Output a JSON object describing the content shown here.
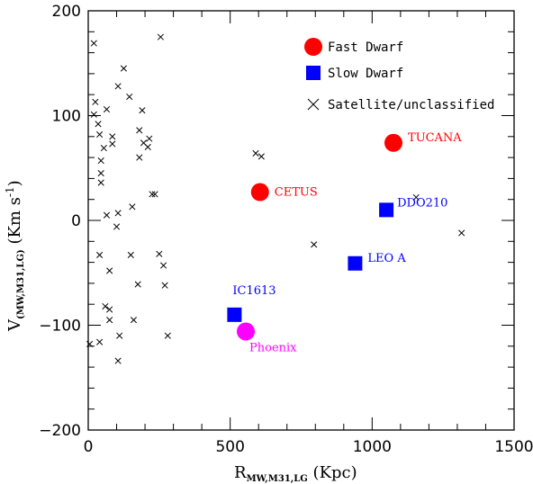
{
  "chart_data": {
    "type": "scatter",
    "title": "",
    "xlabel": {
      "main": "R",
      "sub": "MW,M31,LG",
      "unit": " (Kpc)"
    },
    "ylabel": {
      "main": "V",
      "sub": "(MW,M31,LG)",
      "unit": "  (Km s",
      "sup": "-1",
      "close": ")"
    },
    "xlim": [
      0,
      1500
    ],
    "ylim": [
      -200,
      200
    ],
    "x_ticks": [
      0,
      500,
      1000,
      1500
    ],
    "y_ticks": [
      -200,
      -100,
      0,
      100,
      200
    ],
    "legend_position": "top-right",
    "legend": [
      {
        "label": "Fast Dwarf",
        "marker": "circle",
        "color": "#ff0000"
      },
      {
        "label": "Slow Dwarf",
        "marker": "square",
        "color": "#0000ff"
      },
      {
        "label": "Satellite/unclassified",
        "marker": "cross",
        "color": "#000000"
      }
    ],
    "named_points": [
      {
        "name": "CETUS",
        "x": 605,
        "y": 27,
        "marker": "circle",
        "color": "#ff0000"
      },
      {
        "name": "TUCANA",
        "x": 1075,
        "y": 74,
        "marker": "circle",
        "color": "#ff0000"
      },
      {
        "name": "DDO210",
        "x": 1050,
        "y": 10,
        "marker": "square",
        "color": "#0000ff"
      },
      {
        "name": "LEO A",
        "x": 940,
        "y": -41,
        "marker": "square",
        "color": "#0000ff"
      },
      {
        "name": "IC1613",
        "x": 515,
        "y": -90,
        "marker": "square",
        "color": "#0000ff"
      },
      {
        "name": "Phoenix",
        "x": 555,
        "y": -106,
        "marker": "circle",
        "color": "#ff00ff"
      }
    ],
    "satellites": [
      [
        20,
        169
      ],
      [
        255,
        175
      ],
      [
        125,
        145
      ],
      [
        25,
        113
      ],
      [
        105,
        128
      ],
      [
        145,
        118
      ],
      [
        20,
        101
      ],
      [
        35,
        92
      ],
      [
        65,
        106
      ],
      [
        190,
        105
      ],
      [
        40,
        82
      ],
      [
        85,
        80
      ],
      [
        55,
        69
      ],
      [
        85,
        73
      ],
      [
        180,
        86
      ],
      [
        195,
        74
      ],
      [
        210,
        70
      ],
      [
        215,
        78
      ],
      [
        180,
        60
      ],
      [
        45,
        57
      ],
      [
        45,
        45
      ],
      [
        45,
        36
      ],
      [
        225,
        25
      ],
      [
        235,
        25
      ],
      [
        155,
        13
      ],
      [
        65,
        5
      ],
      [
        105,
        7
      ],
      [
        100,
        -6
      ],
      [
        40,
        -33
      ],
      [
        150,
        -33
      ],
      [
        250,
        -32
      ],
      [
        265,
        -43
      ],
      [
        75,
        -48
      ],
      [
        175,
        -61
      ],
      [
        270,
        -62
      ],
      [
        60,
        -82
      ],
      [
        75,
        -85
      ],
      [
        75,
        -95
      ],
      [
        160,
        -95
      ],
      [
        5,
        -118
      ],
      [
        40,
        -116
      ],
      [
        110,
        -110
      ],
      [
        280,
        -110
      ],
      [
        105,
        -134
      ],
      [
        590,
        64
      ],
      [
        610,
        61
      ],
      [
        795,
        -23
      ],
      [
        1155,
        22
      ],
      [
        1315,
        -12
      ]
    ]
  }
}
